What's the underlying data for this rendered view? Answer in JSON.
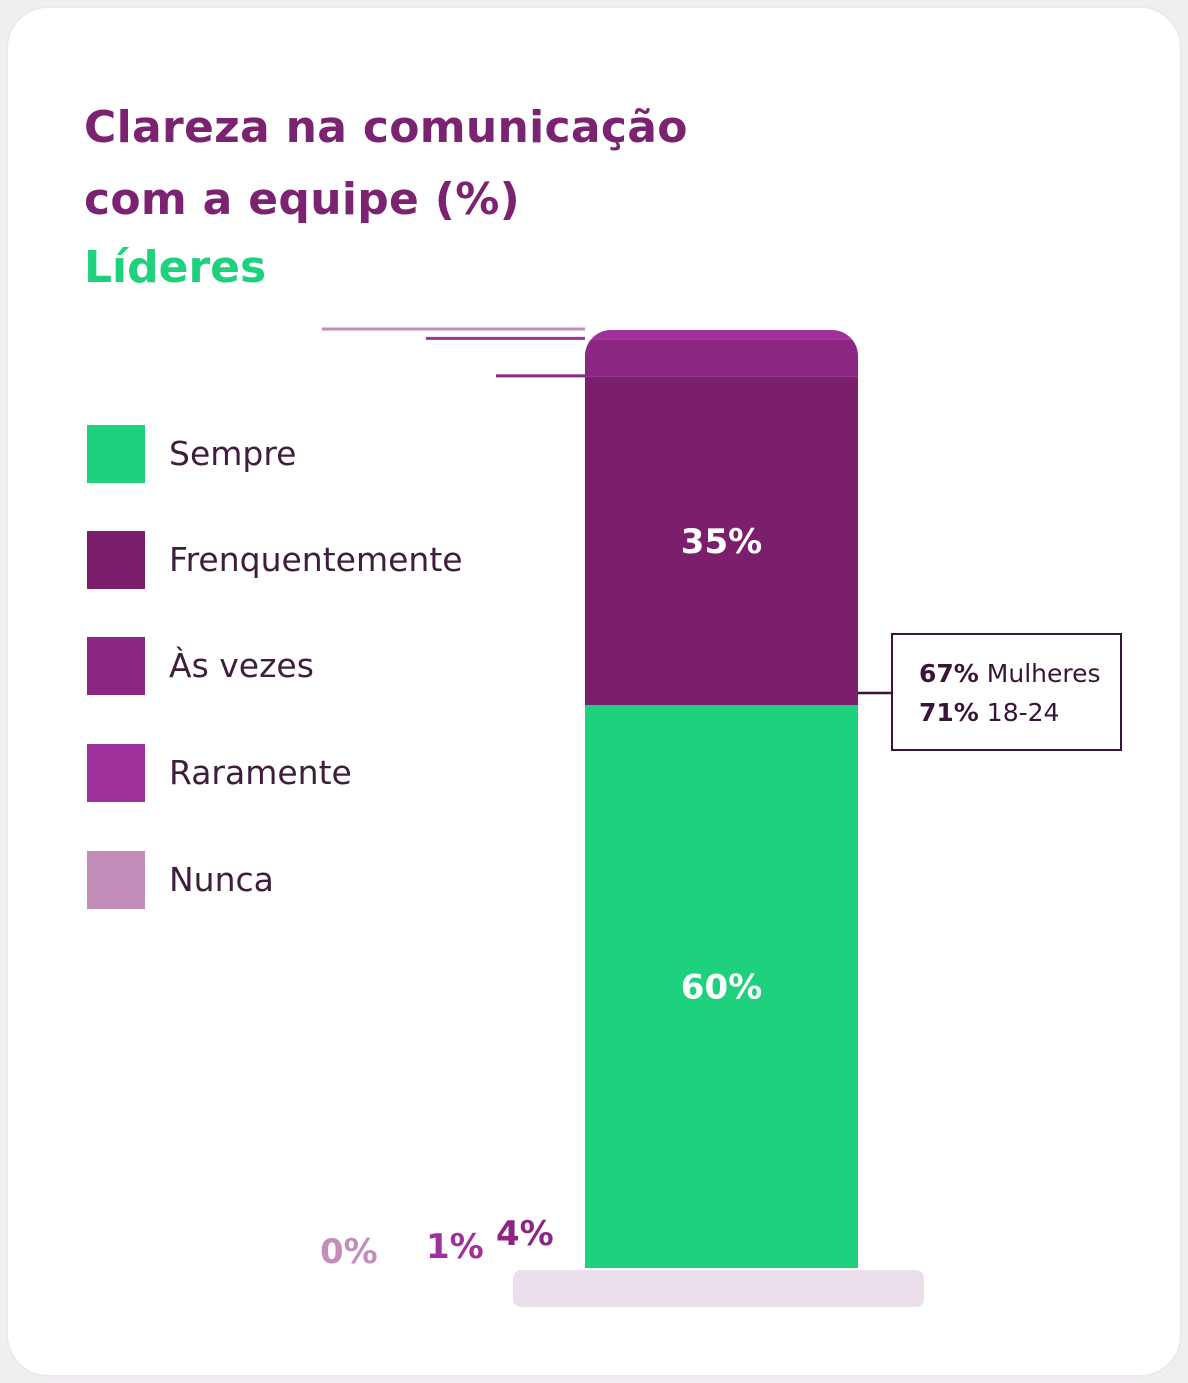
{
  "chart_data": {
    "type": "bar",
    "stacked": true,
    "title": [
      "Clareza na comunicação",
      "com a equipe (%)"
    ],
    "subtitle": "Líderes",
    "categories": [
      ""
    ],
    "series": [
      {
        "name": "Sempre",
        "value": 60,
        "label": "60%",
        "color": "#1ed27d"
      },
      {
        "name": "Frenquentemente",
        "value": 35,
        "label": "35%",
        "color": "#7b1f6c"
      },
      {
        "name": "Às vezes",
        "value": 4,
        "label": "4%",
        "color": "#8b2683"
      },
      {
        "name": "Raramente",
        "value": 1,
        "label": "1%",
        "color": "#a0309a"
      },
      {
        "name": "Nunca",
        "value": 0,
        "label": "0%",
        "color": "#c28db9"
      }
    ],
    "legend": {
      "position": "left"
    },
    "callout": {
      "lines": [
        {
          "value": "67%",
          "text": "Mulheres"
        },
        {
          "value": "71%",
          "text": "18-24"
        }
      ]
    },
    "ylim": [
      0,
      100
    ],
    "grid": false
  }
}
